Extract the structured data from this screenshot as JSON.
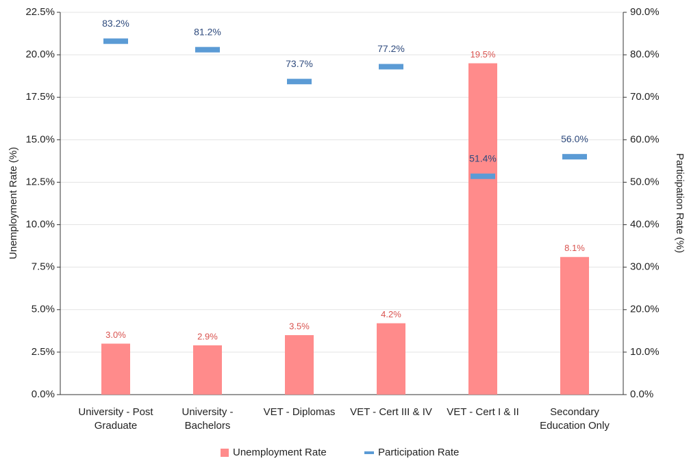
{
  "chart_data": {
    "type": "bar_dash_combo",
    "categories": [
      "University - Post Graduate",
      "University - Bachelors",
      "VET - Diplomas",
      "VET - Cert III & IV",
      "VET - Cert I & II",
      "Secondary Education Only"
    ],
    "series": [
      {
        "name": "Unemployment Rate",
        "color": "#ff8b8b",
        "type": "bar",
        "values": [
          3.0,
          2.9,
          3.5,
          4.2,
          19.5,
          8.1
        ],
        "value_labels": [
          "3.0%",
          "2.9%",
          "3.5%",
          "4.2%",
          "19.5%",
          "8.1%"
        ]
      },
      {
        "name": "Participation Rate",
        "color": "#5b9bd5",
        "type": "dash",
        "axis": "y2",
        "values": [
          83.2,
          81.2,
          73.7,
          77.2,
          51.4,
          56.0
        ],
        "value_labels": [
          "83.2%",
          "81.2%",
          "73.7%",
          "77.2%",
          "51.4%",
          "56.0%"
        ]
      }
    ],
    "ylabel": "Unemployment Rate (%)",
    "y2label": "Participation Rate (%)",
    "ylim": [
      0,
      22.5
    ],
    "yticks": [
      {
        "value": 0,
        "label": "0.0%"
      },
      {
        "value": 2.5,
        "label": "2.5%"
      },
      {
        "value": 5,
        "label": "5.0%"
      },
      {
        "value": 7.5,
        "label": "7.5%"
      },
      {
        "value": 10,
        "label": "10.0%"
      },
      {
        "value": 12.5,
        "label": "12.5%"
      },
      {
        "value": 15,
        "label": "15.0%"
      },
      {
        "value": 17.5,
        "label": "17.5%"
      },
      {
        "value": 20,
        "label": "20.0%"
      },
      {
        "value": 22.5,
        "label": "22.5%"
      }
    ],
    "y2lim": [
      0,
      90
    ],
    "y2ticks": [
      {
        "value": 0,
        "label": "0.0%"
      },
      {
        "value": 10,
        "label": "10.0%"
      },
      {
        "value": 20,
        "label": "20.0%"
      },
      {
        "value": 30,
        "label": "30.0%"
      },
      {
        "value": 40,
        "label": "40.0%"
      },
      {
        "value": 50,
        "label": "50.0%"
      },
      {
        "value": 60,
        "label": "60.0%"
      },
      {
        "value": 70,
        "label": "70.0%"
      },
      {
        "value": 80,
        "label": "80.0%"
      },
      {
        "value": 90,
        "label": "90.0%"
      }
    ],
    "grid": true,
    "legend": "bottom"
  }
}
